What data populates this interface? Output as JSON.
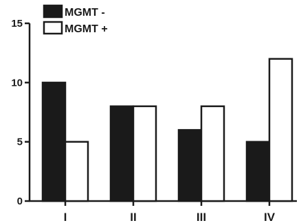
{
  "chart_data": {
    "type": "bar",
    "title": "",
    "xlabel": "",
    "ylabel": "",
    "categories": [
      "I",
      "II",
      "III",
      "IV"
    ],
    "ylim": [
      0,
      15
    ],
    "yticks": [
      0,
      5,
      10,
      15
    ],
    "grid": false,
    "legend_position": "top-left",
    "series": [
      {
        "name": "MGMT -",
        "values": [
          10,
          8,
          6,
          5
        ],
        "color": "#1a1a1a"
      },
      {
        "name": "MGMT +",
        "values": [
          5,
          8,
          8,
          12
        ],
        "color": "#ffffff"
      }
    ]
  }
}
